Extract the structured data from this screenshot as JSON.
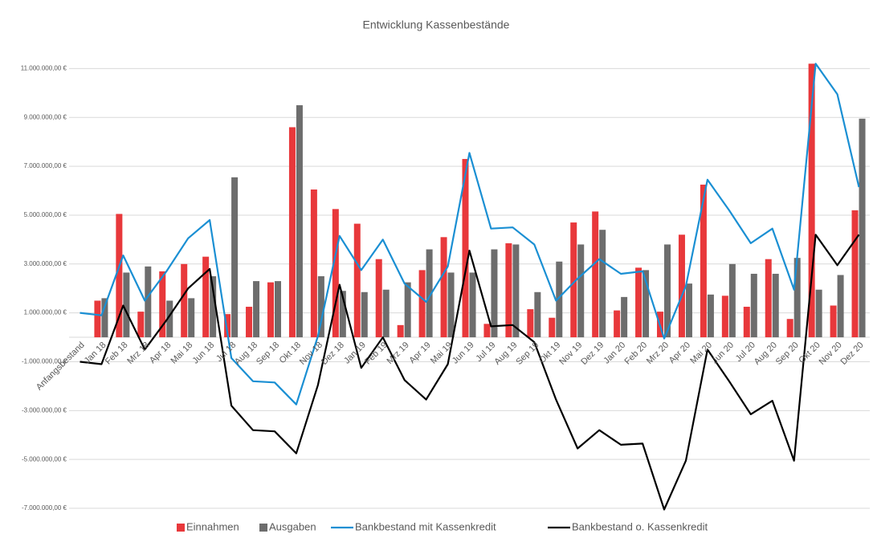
{
  "chart_data": {
    "type": "bar",
    "title": "Entwicklung Kassenbestände",
    "categories": [
      "Anfangsbestand",
      "Jan 18",
      "Feb 18",
      "Mrz 18",
      "Apr 18",
      "Mai 18",
      "Jun 18",
      "Jul 18",
      "Aug 18",
      "Sep 18",
      "Okt 18",
      "Nov 18",
      "Dez 18",
      "Jan 19",
      "Feb 19",
      "Mrz 19",
      "Apr 19",
      "Mai 19",
      "Jun 19",
      "Jul 19",
      "Aug 19",
      "Sep 19",
      "Okt 19",
      "Nov 19",
      "Dez 19",
      "Jan 20",
      "Feb 20",
      "Mrz 20",
      "Apr 20",
      "Mai 20",
      "Jun 20",
      "Jul 20",
      "Aug 20",
      "Sep 20",
      "Okt 20",
      "Nov 20",
      "Dez 20"
    ],
    "series": [
      {
        "name": "Einnahmen",
        "type": "bar",
        "color": "#e8383b",
        "values": [
          null,
          1500000,
          5050000,
          1050000,
          2700000,
          3000000,
          3300000,
          950000,
          1250000,
          2250000,
          8600000,
          6050000,
          5250000,
          4650000,
          3200000,
          500000,
          2750000,
          4100000,
          7300000,
          550000,
          3850000,
          1150000,
          800000,
          4700000,
          5150000,
          1100000,
          2850000,
          1050000,
          4200000,
          6250000,
          1700000,
          1250000,
          3200000,
          750000,
          11200000,
          1300000,
          5200000
        ]
      },
      {
        "name": "Ausgaben",
        "type": "bar",
        "color": "#6d6d6d",
        "values": [
          null,
          1600000,
          2650000,
          2900000,
          1500000,
          1600000,
          2500000,
          6550000,
          2300000,
          2300000,
          9500000,
          2500000,
          1900000,
          1850000,
          1950000,
          2250000,
          3600000,
          2650000,
          2650000,
          3600000,
          3800000,
          1850000,
          3100000,
          3800000,
          4400000,
          1650000,
          2750000,
          3800000,
          2200000,
          1750000,
          3000000,
          2600000,
          2600000,
          3250000,
          1950000,
          2550000,
          8950000
        ]
      },
      {
        "name": "Bankbestand mit Kassenkredit",
        "type": "line",
        "color": "#1a8fd3",
        "values": [
          1000000,
          900000,
          3350000,
          1500000,
          2700000,
          4050000,
          4800000,
          -850000,
          -1800000,
          -1850000,
          -2750000,
          50000,
          4150000,
          2750000,
          4000000,
          2200000,
          1450000,
          2900000,
          7550000,
          4450000,
          4500000,
          3800000,
          1500000,
          2400000,
          3200000,
          2600000,
          2700000,
          -50000,
          2100000,
          6450000,
          5200000,
          3850000,
          4450000,
          1950000,
          11200000,
          9950000,
          6150000
        ]
      },
      {
        "name": "Bankbestand o. Kassenkredit",
        "type": "line",
        "color": "#000000",
        "values": [
          -1000000,
          -1100000,
          1300000,
          -500000,
          700000,
          2000000,
          2800000,
          -2800000,
          -3800000,
          -3850000,
          -4750000,
          -1950000,
          2150000,
          -1250000,
          0,
          -1750000,
          -2550000,
          -1100000,
          3550000,
          450000,
          500000,
          -200000,
          -2550000,
          -4550000,
          -3800000,
          -4400000,
          -4350000,
          -7050000,
          -5050000,
          -500000,
          -1800000,
          -3150000,
          -2600000,
          -5050000,
          4200000,
          2950000,
          4200000
        ]
      }
    ],
    "ylim": [
      -7000000,
      12000000
    ],
    "yticks": [
      {
        "value": -7000000,
        "label": "-7.000.000,00 €"
      },
      {
        "value": -5000000,
        "label": "-5.000.000,00 €"
      },
      {
        "value": -3000000,
        "label": "-3.000.000,00 €"
      },
      {
        "value": -1000000,
        "label": "-1.000.000,00 €"
      },
      {
        "value": 1000000,
        "label": "1.000.000,00 €"
      },
      {
        "value": 3000000,
        "label": "3.000.000,00 €"
      },
      {
        "value": 5000000,
        "label": "5.000.000,00 €"
      },
      {
        "value": 7000000,
        "label": "7.000.000,00 €"
      },
      {
        "value": 9000000,
        "label": "9.000.000,00 €"
      },
      {
        "value": 11000000,
        "label": "11.000.000,00 €"
      }
    ],
    "grid": true,
    "legend": "bottom"
  }
}
